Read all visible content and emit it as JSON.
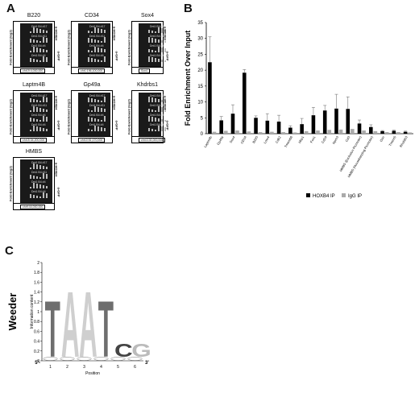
{
  "panels": {
    "a": "A",
    "b": "B",
    "c": "C"
  },
  "tracks": [
    {
      "title": "B220",
      "lanes": [
        "Dnt1 B4 #17",
        "Dnt1 B4 #11",
        "Dnt1 B4 #4",
        "Dnt1 B4 #4"
      ],
      "coord": "chr19:4,000,000"
    },
    {
      "title": "CD34",
      "lanes": [
        "Dnt1 B4 #17",
        "Dnt1 B4 #11",
        "Dnt1 B4 #4",
        "Dnt1 B4 #4"
      ],
      "coord": "chr1:196,100,000"
    },
    {
      "title": "Sox4",
      "lanes": [
        "Dnt1 B4 #17",
        "Dnt1 B4 #11",
        "Dnt1 B4 #4",
        "Dnt1 B4 #4"
      ],
      "coord": "Sox4"
    },
    {
      "title": "Laptm4B",
      "lanes": [
        "Dnt1 B4 #17",
        "Dnt1 B4 #11",
        "Dnt1 B4 #4",
        "Dnt1 B4 #4"
      ],
      "coord": "chr15:34,200,000"
    },
    {
      "title": "Gp49a",
      "lanes": [
        "Dnt1 B4 #17",
        "Dnt1 B4 #11",
        "Dnt1 B4 #4",
        "Dnt1 B4 #4"
      ],
      "coord": "chr10:51,170,000"
    },
    {
      "title": "Khdrbs1",
      "lanes": [
        "Dnt1 B4 #17",
        "Dnt1 B4 #11",
        "Dnt1 B4 #4",
        "Dnt1 B4 #4"
      ],
      "coord": "chr4:130,000,000"
    },
    {
      "title": "HMBS",
      "lanes": [
        "Dnt1 B4 #17",
        "Dnt1 B4 #11",
        "Dnt1 B4 #4",
        "Dnt1 B4 #4"
      ],
      "coord": "chr9:44,000,000"
    }
  ],
  "track_ylabel": "Fold-Enrichment (log2)",
  "track_right_top": "α-HOXB4",
  "track_right_bottom": "α-GFP",
  "chart_data": [
    {
      "type": "bar",
      "title": "",
      "ylabel": "Fold Enrichment Over Input",
      "xlabel": "",
      "ylim": [
        0,
        35
      ],
      "yticks": [
        0,
        5,
        10,
        15,
        20,
        25,
        30,
        35
      ],
      "categories": [
        "Laptm4b",
        "Gp49a",
        "Sox4",
        "CD34",
        "B220",
        "Lmo4",
        "Cdk2",
        "Tmem66",
        "Hbp1",
        "Fos1",
        "Cd34",
        "Npm3",
        "Cd3",
        "HMBS (Exclusion Promoter)",
        "HMBS (Housekeeping Promoter)",
        "Gsn",
        "Tmem5",
        "Rhobtb3"
      ],
      "series": [
        {
          "name": "HOXB4 IP",
          "color": "#000000",
          "values": [
            22.5,
            4.2,
            6.3,
            19.2,
            5.0,
            4.1,
            3.8,
            1.9,
            3.0,
            5.8,
            7.3,
            7.9,
            7.8,
            3.2,
            2.1,
            0.8,
            0.9,
            0.6
          ]
        },
        {
          "name": "IgG IP",
          "color": "#aaaaaa",
          "values": [
            0.6,
            0.9,
            1.0,
            0.7,
            0.5,
            0.6,
            0.5,
            0.4,
            0.8,
            1.0,
            1.2,
            1.3,
            1.5,
            1.0,
            0.8,
            0.5,
            0.5,
            0.4
          ]
        }
      ],
      "errors": [
        8.0,
        1.2,
        2.8,
        1.0,
        0.6,
        2.2,
        2.0,
        0.6,
        1.8,
        2.5,
        1.6,
        4.5,
        3.8,
        1.1,
        0.7,
        0.2,
        0.2,
        0.2
      ],
      "legend_position": "bottom-right"
    },
    {
      "type": "sequence-logo",
      "ylabel": "Information content",
      "side_label": "Weeder",
      "xlabel": "Position",
      "ylim": [
        0,
        2
      ],
      "yticks": [
        0,
        0.2,
        0.4,
        0.6,
        0.8,
        1,
        1.2,
        1.4,
        1.6,
        1.8,
        2
      ],
      "positions": [
        1,
        2,
        3,
        4,
        5,
        6
      ],
      "letters": [
        "T",
        "A",
        "A",
        "T",
        "C",
        "G"
      ],
      "heights": [
        1.25,
        1.45,
        1.45,
        1.25,
        0.35,
        0.35
      ],
      "prime5": "5'-",
      "prime3": "3'"
    }
  ]
}
